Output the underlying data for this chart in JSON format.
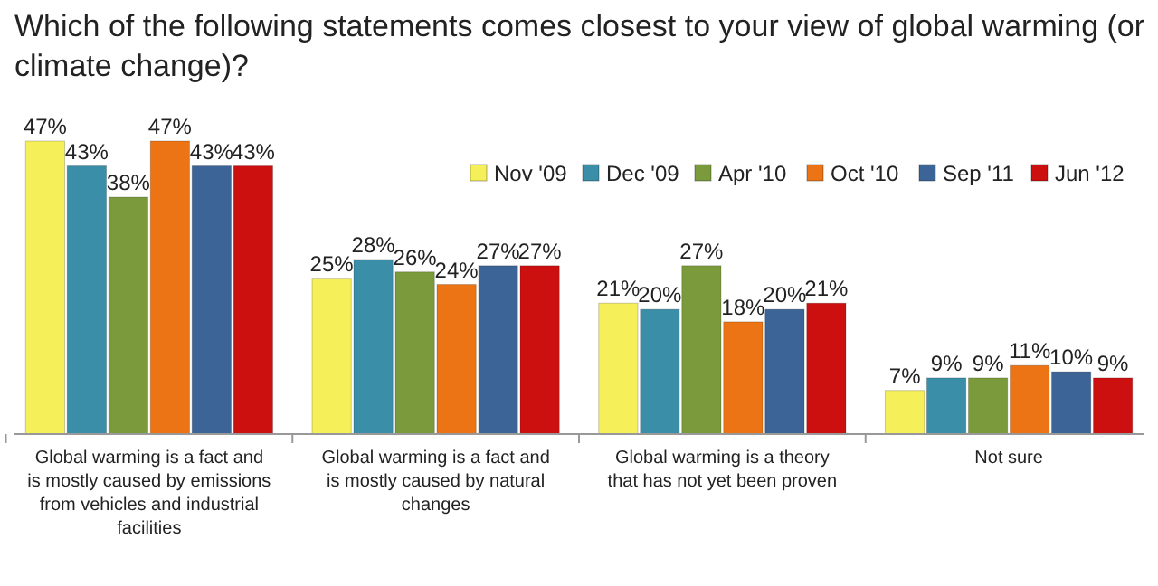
{
  "chart_data": {
    "type": "bar",
    "title": "Which of the following statements comes closest to your view of global warming (or climate change)?",
    "categories": [
      "Global warming is a fact and is mostly caused by emissions from vehicles and industrial facilities",
      "Global warming is a fact and is mostly caused by natural changes",
      "Global warming is a theory that has not yet been proven",
      "Not sure"
    ],
    "series": [
      {
        "name": "Nov '09",
        "color": "#f5f05a",
        "values": [
          47,
          25,
          21,
          7
        ],
        "value_labels": [
          "47%",
          "25%",
          "21%",
          "7%"
        ]
      },
      {
        "name": "Dec '09",
        "color": "#3a8ea8",
        "values": [
          43,
          28,
          20,
          9
        ],
        "value_labels": [
          "43%",
          "28%",
          "20%",
          "9%"
        ]
      },
      {
        "name": "Apr '10",
        "color": "#7a9a3c",
        "values": [
          38,
          26,
          27,
          9
        ],
        "value_labels": [
          "38%",
          "26%",
          "27%",
          "9%"
        ]
      },
      {
        "name": "Oct '10",
        "color": "#ec7414",
        "values": [
          47,
          24,
          18,
          11
        ],
        "value_labels": [
          "47%",
          "24%",
          "18%",
          "11%"
        ]
      },
      {
        "name": "Sep '11",
        "color": "#3c6496",
        "values": [
          43,
          27,
          20,
          10
        ],
        "value_labels": [
          "43%",
          "27%",
          "20%",
          "10%"
        ]
      },
      {
        "name": "Jun '12",
        "color": "#cc1010",
        "values": [
          43,
          27,
          21,
          9
        ],
        "value_labels": [
          "43%",
          "27%",
          "21%",
          "9%"
        ]
      }
    ],
    "legend": "top right"
  }
}
